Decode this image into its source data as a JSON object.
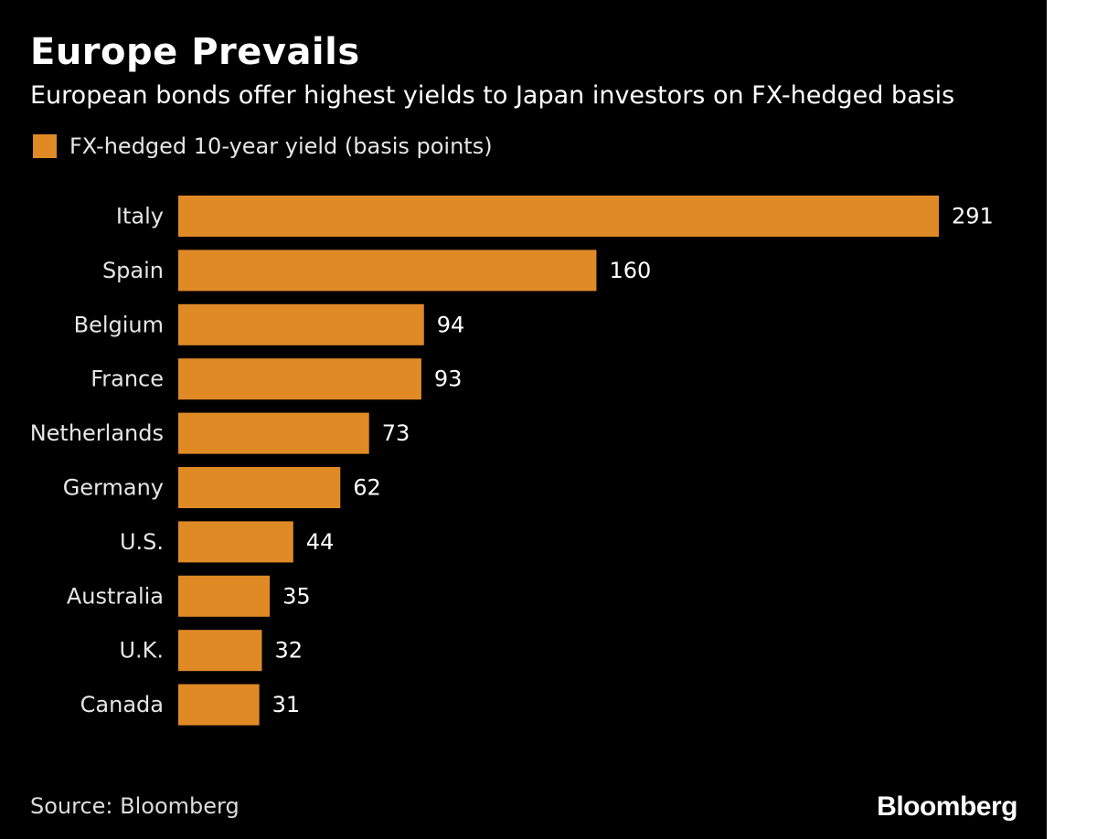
{
  "header": {
    "title": "Europe Prevails",
    "subtitle": "European bonds offer highest yields to Japan investors on FX-hedged basis"
  },
  "colors": {
    "background": "#000000",
    "bar": "#e08a26",
    "text": "#ffffff"
  },
  "chart_data": {
    "type": "bar",
    "orientation": "horizontal",
    "title": "Europe Prevails",
    "subtitle": "European bonds offer highest yields to Japan investors on FX-hedged basis",
    "legend": [
      "FX-hedged 10-year yield (basis points)"
    ],
    "legend_position": "top-left",
    "xlabel": "",
    "ylabel": "",
    "xlim": [
      0,
      291
    ],
    "grid": false,
    "categories": [
      "Italy",
      "Spain",
      "Belgium",
      "France",
      "Netherlands",
      "Germany",
      "U.S.",
      "Australia",
      "U.K.",
      "Canada"
    ],
    "series": [
      {
        "name": "FX-hedged 10-year yield (basis points)",
        "values": [
          291,
          160,
          94,
          93,
          73,
          62,
          44,
          35,
          32,
          31
        ]
      }
    ]
  },
  "footer": {
    "source": "Source: Bloomberg",
    "brand": "Bloomberg"
  }
}
